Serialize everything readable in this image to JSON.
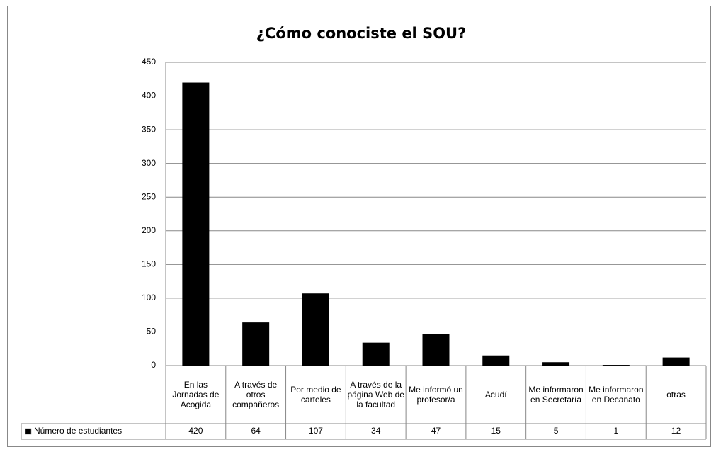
{
  "chart_data": {
    "type": "bar",
    "title": "¿Cómo conociste el SOU?",
    "categories": [
      "En las Jornadas de Acogida",
      "A través de otros compañeros",
      "Por medio de carteles",
      "A través de la página Web de la facultad",
      "Me informó un profesor/a",
      "Acudí",
      "Me informaron en Secretaría",
      "Me informaron en Decanato",
      "otras"
    ],
    "series": [
      {
        "name": "Número de estudiantes",
        "color": "#000000",
        "values": [
          420,
          64,
          107,
          34,
          47,
          15,
          5,
          1,
          12
        ]
      }
    ],
    "ylim": [
      0,
      450
    ],
    "yticks": [
      0,
      50,
      100,
      150,
      200,
      250,
      300,
      350,
      400,
      450
    ],
    "grid": true,
    "data_table": true
  }
}
